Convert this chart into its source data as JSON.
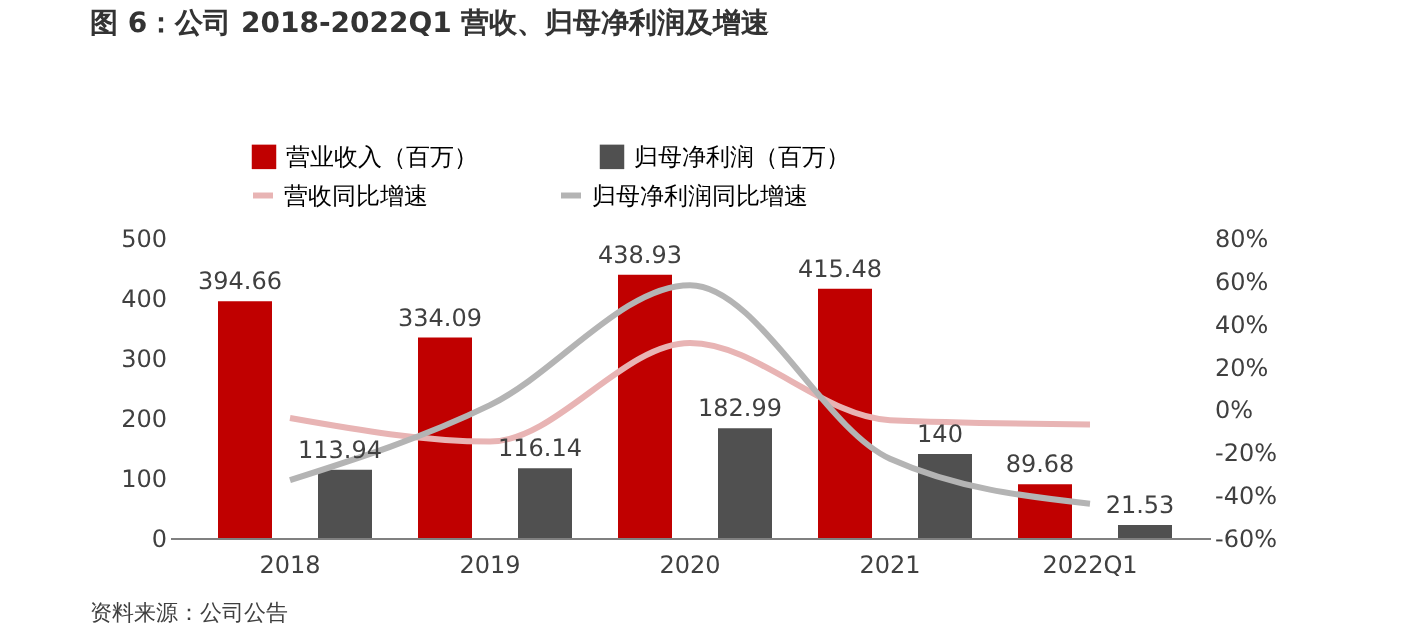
{
  "chart_data": {
    "type": "bar",
    "title": "图 6：公司 2018-2022Q1 营收、归母净利润及增速",
    "categories": [
      "2018",
      "2019",
      "2020",
      "2021",
      "2022Q1"
    ],
    "series": [
      {
        "name": "营业收入（百万）",
        "color": "#c00000",
        "values": [
          394.66,
          334.09,
          438.93,
          415.48,
          89.68
        ],
        "value_labels": [
          "394.66",
          "334.09",
          "438.93",
          "415.48",
          "89.68"
        ]
      },
      {
        "name": "归母净利润（百万）",
        "color": "#505050",
        "values": [
          113.94,
          116.14,
          182.99,
          140,
          21.53
        ],
        "value_labels": [
          "113.94",
          "116.14",
          "182.99",
          "140",
          "21.53"
        ]
      },
      {
        "name": "营收同比增速",
        "type": "line",
        "axis": "y2",
        "color": "#e8b4b4",
        "values": [
          -4,
          -15,
          31,
          -5,
          -7
        ]
      },
      {
        "name": "归母净利润同比增速",
        "type": "line",
        "axis": "y2",
        "color": "#b4b4b4",
        "values": [
          -33,
          2,
          58,
          -23,
          -44
        ]
      }
    ],
    "ylim": [
      0,
      500
    ],
    "yticks": [
      0,
      100,
      200,
      300,
      400,
      500
    ],
    "y2lim": [
      -60,
      80
    ],
    "y2ticks": [
      {
        "value": -60,
        "label": "-60%"
      },
      {
        "value": -40,
        "label": "-40%"
      },
      {
        "value": -20,
        "label": "-20%"
      },
      {
        "value": 0,
        "label": "0%"
      },
      {
        "value": 20,
        "label": "20%"
      },
      {
        "value": 40,
        "label": "40%"
      },
      {
        "value": 60,
        "label": "60%"
      },
      {
        "value": 80,
        "label": "80%"
      }
    ],
    "grid": false,
    "legend": "top",
    "marker": "none",
    "line_style": "solid",
    "annotations": [
      "资料来源：公司公告"
    ]
  }
}
